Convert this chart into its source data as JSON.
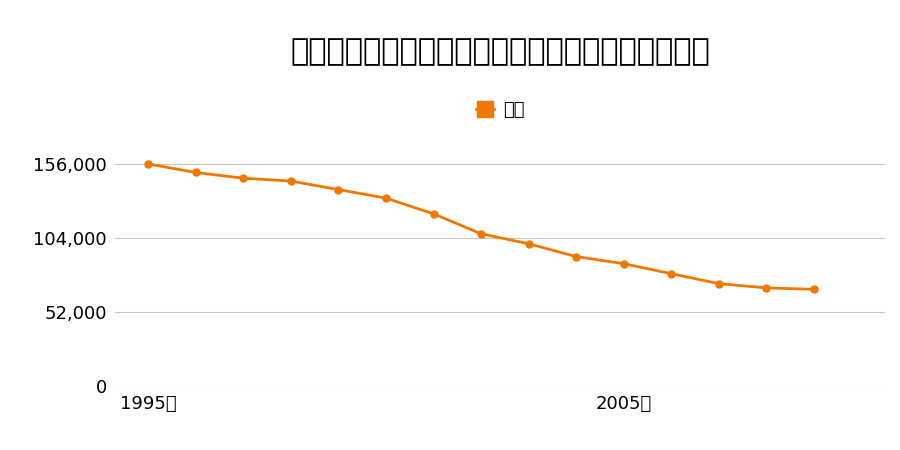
{
  "title": "大阪府泉佐野市泉ケ丘５丁目１１６番４の地価推移",
  "legend_label": "価格",
  "years": [
    1995,
    1996,
    1997,
    1998,
    1999,
    2000,
    2001,
    2002,
    2003,
    2004,
    2005,
    2006,
    2007,
    2008,
    2009
  ],
  "values": [
    156000,
    150000,
    146000,
    144000,
    138000,
    132000,
    121000,
    107000,
    100000,
    91000,
    86000,
    79000,
    72000,
    69000,
    68000
  ],
  "line_color": "#f07800",
  "marker_color": "#f07800",
  "bg_color": "#ffffff",
  "yticks": [
    0,
    52000,
    104000,
    156000
  ],
  "ytick_labels": [
    "0",
    "52,000",
    "104,000",
    "156,000"
  ],
  "xtick_years": [
    1995,
    2005
  ],
  "xtick_labels": [
    "1995年",
    "2005年"
  ],
  "ylim": [
    0,
    175000
  ],
  "title_fontsize": 22,
  "legend_fontsize": 13,
  "tick_fontsize": 13
}
